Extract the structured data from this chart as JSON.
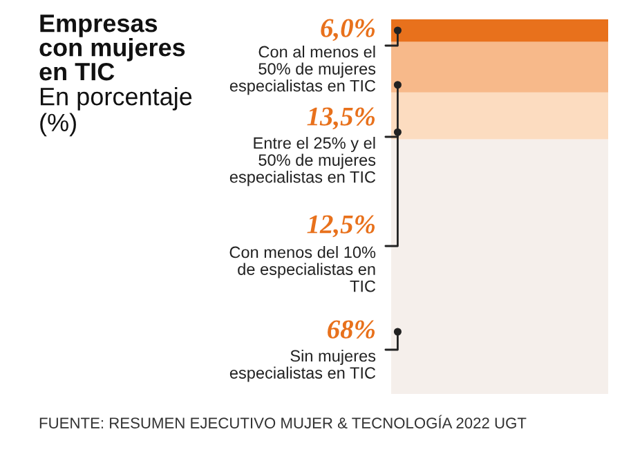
{
  "chart_data": {
    "type": "bar",
    "stacked": true,
    "title": "Empresas\ncon mujeres\nen TIC",
    "subtitle": "En porcentaje\n(%)",
    "categories": [
      null
    ],
    "ylim": [
      0,
      100
    ],
    "legend": false,
    "series": [
      {
        "name": "Sin mujeres\nespecialistas en TIC",
        "color": "#f5efeb",
        "values": [
          68
        ],
        "value_labels": [
          "68%"
        ]
      },
      {
        "name": "Con menos del 10%\nde especialistas en\nTIC",
        "color": "#fcdcc0",
        "values": [
          12.5
        ],
        "value_labels": [
          "12,5%"
        ]
      },
      {
        "name": "Entre el 25% y el\n50% de mujeres\nespecialistas en TIC",
        "color": "#f7b98a",
        "values": [
          13.5
        ],
        "value_labels": [
          "13,5%"
        ]
      },
      {
        "name": "Con al menos el\n50% de mujeres\nespecialistas en TIC",
        "color": "#e8711c",
        "values": [
          6.0
        ],
        "value_labels": [
          "6,0%"
        ]
      }
    ],
    "annotations": [
      "FUENTE: RESUMEN EJECUTIVO MUJER & TECNOLOGÍA 2022 UGT"
    ]
  }
}
